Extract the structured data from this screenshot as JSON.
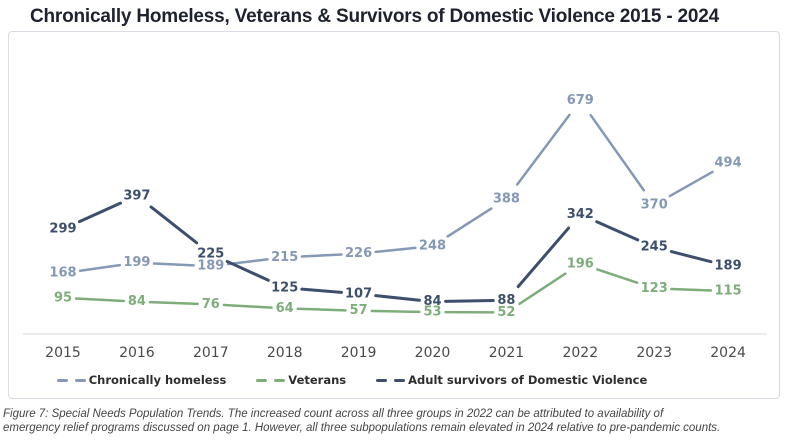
{
  "title": "Chronically Homeless, Veterans & Survivors of Domestic Violence 2015 - 2024",
  "chart_data": {
    "type": "line",
    "title": "Chronically Homeless, Veterans & Survivors of Domestic Violence 2015 - 2024",
    "categories": [
      "2015",
      "2016",
      "2017",
      "2018",
      "2019",
      "2020",
      "2021",
      "2022",
      "2023",
      "2024"
    ],
    "series": [
      {
        "name": "Chronically homeless",
        "color": "#8598b6",
        "line_width": 2.5,
        "values": [
          168,
          199,
          189,
          215,
          226,
          248,
          388,
          679,
          370,
          494
        ]
      },
      {
        "name": "Veterans",
        "color": "#7ead7b",
        "line_width": 2.5,
        "values": [
          95,
          84,
          76,
          64,
          57,
          53,
          52,
          196,
          123,
          115
        ]
      },
      {
        "name": "Adult survivors of Domestic Violence",
        "color": "#3d4f6c",
        "line_width": 3,
        "values": [
          299,
          397,
          225,
          125,
          107,
          84,
          88,
          342,
          245,
          189
        ]
      }
    ],
    "xlabel": "",
    "ylabel": "",
    "ylim": [
      0,
      880
    ],
    "grid": "none",
    "value_labels": true,
    "legend_position": "bottom",
    "axis_line_color": "#e3e5e9",
    "tick_color": "#4a4a4a"
  },
  "caption": {
    "line1": "Figure 7: Special Needs Population Trends. The increased count across all three groups in 2022 can be attributed to availability of",
    "line2": "emergency relief programs discussed on page 1. However, all three subpopulations remain elevated in 2024 relative to pre-pandemic counts."
  }
}
